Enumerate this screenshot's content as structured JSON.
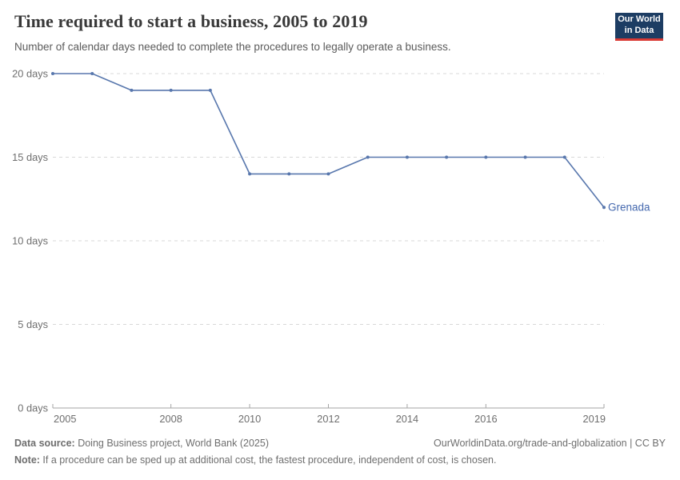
{
  "header": {
    "title": "Time required to start a business, 2005 to 2019",
    "subtitle": "Number of calendar days needed to complete the procedures to legally operate a business.",
    "logo": {
      "line1": "Our World",
      "line2": "in Data",
      "bg_color": "#1d3d63",
      "accent_color": "#d93a34"
    }
  },
  "chart_data": {
    "type": "line",
    "title": "Time required to start a business, 2005 to 2019",
    "x": [
      2005,
      2006,
      2007,
      2008,
      2009,
      2010,
      2011,
      2012,
      2013,
      2014,
      2015,
      2016,
      2017,
      2018,
      2019
    ],
    "series": [
      {
        "name": "Grenada",
        "values": [
          20,
          20,
          19,
          19,
          19,
          14,
          14,
          14,
          15,
          15,
          15,
          15,
          15,
          15,
          12
        ],
        "color": "#5877ad",
        "label_color": "#4468ae"
      }
    ],
    "xlim": [
      2005,
      2019
    ],
    "ylim": [
      0,
      20
    ],
    "xticks": [
      2005,
      2008,
      2010,
      2012,
      2014,
      2016,
      2019
    ],
    "yticks": [
      0,
      5,
      10,
      15,
      20
    ],
    "ytick_labels": [
      "0 days",
      "5 days",
      "10 days",
      "15 days",
      "20 days"
    ],
    "grid": "horizontal dashed, zero line solid with upward ticks",
    "legend_position": "end-of-line label",
    "grid_color": "#d8d8d8",
    "axis_color": "#a5a5a5"
  },
  "footer": {
    "data_source_label": "Data source:",
    "data_source_text": " Doing Business project, World Bank (2025)",
    "link_text": "OurWorldinData.org/trade-and-globalization | CC BY",
    "note_label": "Note:",
    "note_text": " If a procedure can be sped up at additional cost, the fastest procedure, independent of cost, is chosen."
  }
}
